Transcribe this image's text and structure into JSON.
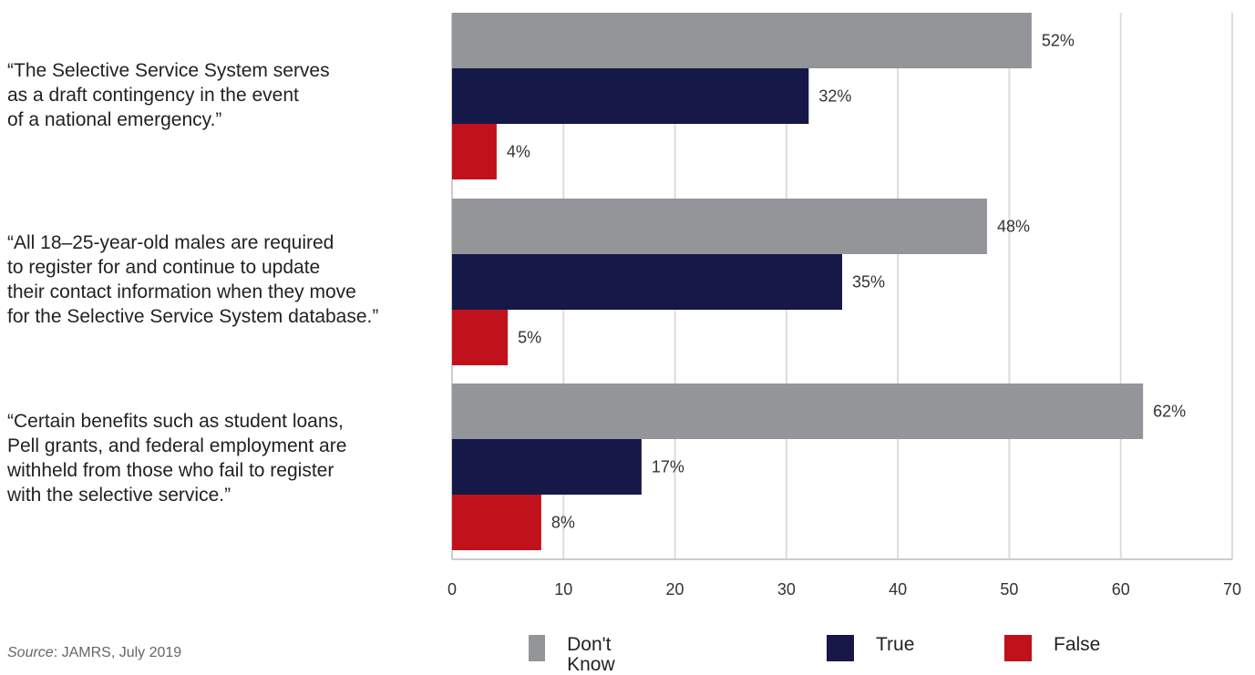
{
  "chart_data": {
    "type": "bar",
    "orientation": "horizontal",
    "categories": [
      "“The Selective Service System serves as a draft contingency in the event of a national emergency.”",
      "“All 18–25-year-old males are required to register for and continue to update their contact information when they move for the Selective Service System database.”",
      "“Certain benefits such as student loans, Pell grants, and federal employment are withheld from those who fail to register with the selective service.”"
    ],
    "category_lines": [
      [
        "“The Selective Service System serves",
        "as a draft contingency in the event",
        "of a national emergency.”"
      ],
      [
        "“All 18–25-year-old males are required",
        "to register for and continue to update",
        "their contact information when they move",
        "for the Selective Service System database.”"
      ],
      [
        "“Certain benefits such as student loans,",
        "Pell grants, and federal employment are",
        "withheld from those who fail to register",
        "with the selective service.”"
      ]
    ],
    "series": [
      {
        "name": "Don't Know",
        "color": "#939598",
        "values": [
          52,
          48,
          62
        ],
        "labels": [
          "52%",
          "48%",
          "62%"
        ]
      },
      {
        "name": "True",
        "color": "#161847",
        "values": [
          32,
          35,
          17
        ],
        "labels": [
          "32%",
          "35%",
          "17%"
        ]
      },
      {
        "name": "False",
        "color": "#c1111b",
        "values": [
          4,
          5,
          8
        ],
        "labels": [
          "4%",
          "5%",
          "8%"
        ]
      }
    ],
    "x_ticks": [
      "0",
      "10",
      "20",
      "30",
      "40",
      "50",
      "60",
      "70"
    ],
    "xlim": [
      0,
      70
    ],
    "grid": true,
    "legend_position": "bottom"
  },
  "source": {
    "label": "Source",
    "text": ": JAMRS, July 2019"
  }
}
